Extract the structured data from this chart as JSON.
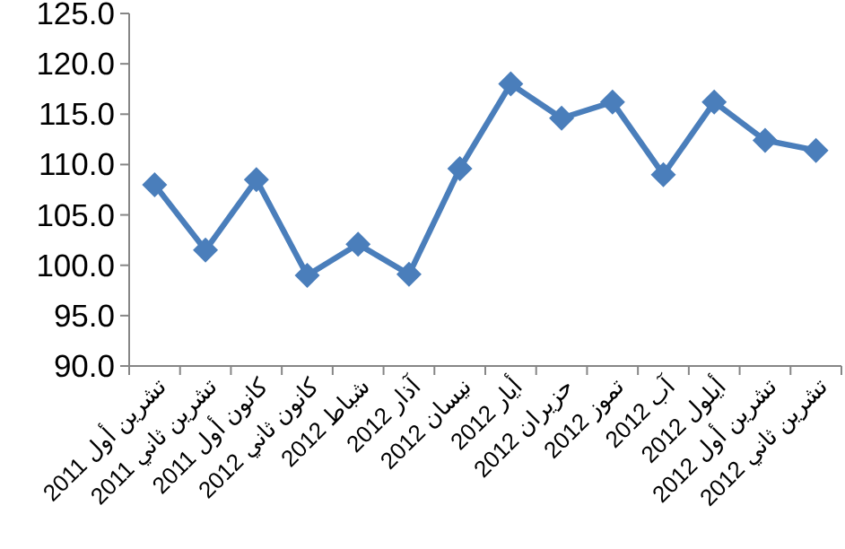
{
  "chart_data": {
    "type": "line",
    "categories": [
      "تشرين أول 2011",
      "تشرين ثاني 2011",
      "كانون أول 2011",
      "كانون ثاني 2012",
      "شباط 2012",
      "آذار 2012",
      "نيسان 2012",
      "أيار 2012",
      "حزيران 2012",
      "تموز 2012",
      "آب 2012",
      "أيلول 2012",
      "تشرين أول 2012",
      "تشرين ثاني 2012"
    ],
    "series": [
      {
        "color": "#4a7ebb",
        "values": [
          108.0,
          101.5,
          108.5,
          99.0,
          102.1,
          99.1,
          109.6,
          118.0,
          114.6,
          116.2,
          109.0,
          116.2,
          112.4,
          111.4
        ]
      }
    ],
    "ylim": [
      90,
      125
    ],
    "yticks": [
      {
        "value": 90,
        "label": "90.0"
      },
      {
        "value": 95,
        "label": "95.0"
      },
      {
        "value": 100,
        "label": "100.0"
      },
      {
        "value": 105,
        "label": "105.0"
      },
      {
        "value": 110,
        "label": "110.0"
      },
      {
        "value": 115,
        "label": "115.0"
      },
      {
        "value": 120,
        "label": "120.0"
      },
      {
        "value": 125,
        "label": "125.0"
      }
    ],
    "marker": "diamond",
    "line_style": "solid"
  }
}
